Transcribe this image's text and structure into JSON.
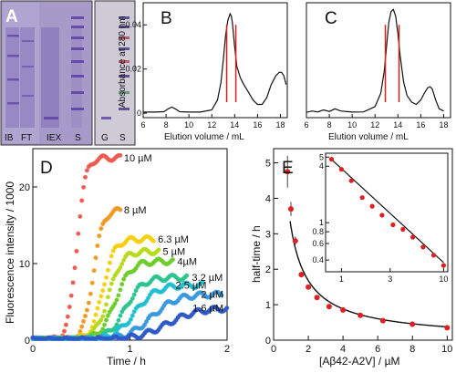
{
  "panel_labels": {
    "a": "A",
    "b": "B",
    "c": "C",
    "d": "D",
    "e": "E"
  },
  "colors": {
    "gel_background": "#a79ac9",
    "gel_band": "#5b3fa4",
    "trace": "#111111",
    "peak_marker": "#d21f1f",
    "fit_points": "#e02020",
    "fit_line": "#111111"
  },
  "chart_data": [
    {
      "id": "A",
      "type": "gel",
      "lane_labels": [
        "IB",
        "FT",
        "IEX",
        "S",
        "G",
        "S"
      ]
    },
    {
      "id": "B",
      "type": "line",
      "xlabel": "Elution volume / mL",
      "ylabel": "Absorbance at 280 nm",
      "xlim": [
        6,
        18.6
      ],
      "ylim": [
        -0.002,
        0.05
      ],
      "xticks": [
        6,
        8,
        10,
        12,
        14,
        16,
        18
      ],
      "yticks": [
        0,
        0.02,
        0.04
      ],
      "ytick_labels": [
        "0",
        "0.02",
        "0.04"
      ],
      "marker_x": [
        13.3,
        14.1
      ],
      "series": [
        {
          "x": [
            6.0,
            7.0,
            7.8,
            8.2,
            8.5,
            8.8,
            9.2,
            10.0,
            11.0,
            12.0,
            12.5,
            12.8,
            13.0,
            13.2,
            13.4,
            13.6,
            13.7,
            13.8,
            14.0,
            14.2,
            14.5,
            14.8,
            15.2,
            15.6,
            16.0,
            16.4,
            16.8,
            17.2,
            17.6,
            17.9,
            18.1,
            18.3,
            18.5
          ],
          "y": [
            0.0005,
            0.0005,
            0.0007,
            0.002,
            0.0028,
            0.002,
            0.0007,
            0.0005,
            0.0005,
            0.0015,
            0.006,
            0.014,
            0.024,
            0.035,
            0.042,
            0.045,
            0.044,
            0.041,
            0.03,
            0.021,
            0.016,
            0.013,
            0.0095,
            0.006,
            0.004,
            0.004,
            0.007,
            0.013,
            0.017,
            0.0185,
            0.0185,
            0.017,
            0.013
          ]
        }
      ]
    },
    {
      "id": "C",
      "type": "line",
      "xlabel": "Elution volume / mL",
      "xlim": [
        6,
        18.6
      ],
      "ylim": [
        -0.002,
        0.05
      ],
      "xticks": [
        6,
        8,
        10,
        12,
        14,
        16,
        18
      ],
      "marker_x": [
        12.9,
        14.1
      ],
      "series": [
        {
          "x": [
            6.0,
            6.5,
            7.0,
            7.5,
            8.0,
            8.5,
            9.0,
            10.0,
            11.0,
            12.0,
            12.5,
            12.8,
            13.0,
            13.2,
            13.4,
            13.6,
            13.8,
            14.0,
            14.2,
            14.5,
            14.8,
            15.2,
            15.6,
            16.0,
            16.3,
            16.6,
            16.8,
            17.0,
            17.3,
            17.6,
            18.0
          ],
          "y": [
            0.0004,
            0.001,
            0.0006,
            0.0015,
            0.0008,
            0.002,
            0.001,
            0.0005,
            0.0006,
            0.003,
            0.009,
            0.019,
            0.03,
            0.041,
            0.046,
            0.047,
            0.044,
            0.036,
            0.026,
            0.014,
            0.008,
            0.005,
            0.004,
            0.006,
            0.009,
            0.0115,
            0.012,
            0.011,
            0.006,
            0.002,
            0.001
          ]
        }
      ]
    },
    {
      "id": "D",
      "type": "scatter",
      "xlabel": "Time / h",
      "ylabel": "Fluorescence intensity / 1000",
      "xlim": [
        0,
        2
      ],
      "ylim": [
        0,
        25
      ],
      "xticks": [
        0,
        1,
        2
      ],
      "yticks": [
        0,
        10,
        20
      ],
      "series": [
        {
          "name": "10 µM",
          "color": "#ee5a50",
          "plateau": 23.8,
          "half_time": 0.45,
          "width": 0.045,
          "end": 0.9
        },
        {
          "name": "8 µM",
          "color": "#f09a23",
          "plateau": 17.0,
          "half_time": 0.62,
          "width": 0.05,
          "end": 0.9
        },
        {
          "name": "6.3 µM",
          "color": "#f5d010",
          "plateau": 13.2,
          "half_time": 0.72,
          "width": 0.06,
          "end": 1.25
        },
        {
          "name": "5 µM",
          "color": "#b7da1c",
          "plateau": 11.6,
          "half_time": 0.78,
          "width": 0.07,
          "end": 1.3
        },
        {
          "name": "4µM",
          "color": "#6dcd2c",
          "plateau": 10.3,
          "half_time": 0.85,
          "width": 0.08,
          "end": 1.45
        },
        {
          "name": "3.2 µM",
          "color": "#2dc58e",
          "plateau": 8.2,
          "half_time": 0.95,
          "width": 0.09,
          "end": 1.6
        },
        {
          "name": "2.5 µM",
          "color": "#22bfd2",
          "plateau": 7.2,
          "half_time": 1.05,
          "width": 0.11,
          "end": 1.75
        },
        {
          "name": "2 µM",
          "color": "#3b99df",
          "plateau": 6.0,
          "half_time": 1.22,
          "width": 0.13,
          "end": 1.95
        },
        {
          "name": "1.6 µM",
          "color": "#2f5ac9",
          "plateau": 4.2,
          "half_time": 1.38,
          "width": 0.16,
          "end": 2.0
        }
      ]
    },
    {
      "id": "E",
      "type": "scatter",
      "xlabel": "[Aβ42-A2V] / µM",
      "ylabel": "half-time / h",
      "xlim": [
        0,
        10.3
      ],
      "ylim": [
        0,
        5.4
      ],
      "xticks": [
        0,
        2,
        4,
        6,
        8,
        10
      ],
      "yticks": [
        0,
        1,
        2,
        3,
        4,
        5
      ],
      "series": [
        {
          "x": [
            0.8,
            1.0,
            1.25,
            1.6,
            2.0,
            2.5,
            3.2,
            4.0,
            5.0,
            6.3,
            8.0,
            10.0
          ],
          "y": [
            4.75,
            3.7,
            2.8,
            1.85,
            1.5,
            1.2,
            0.95,
            0.85,
            0.7,
            0.55,
            0.45,
            0.35
          ],
          "error": [
            0.45,
            0.2,
            0.12,
            0.08,
            0.06,
            0.05,
            0.04,
            0.03,
            0.03,
            0.03,
            0.02,
            0.02
          ]
        }
      ],
      "fit": {
        "type": "power",
        "coefficient": 3.2,
        "exponent": -0.93
      },
      "inset": {
        "type": "scatter",
        "scale": "log-log",
        "xlim": [
          0.7,
          11
        ],
        "ylim": [
          0.3,
          5.5
        ],
        "xticks": [
          1,
          3,
          10
        ],
        "yticks": [
          0.4,
          0.6,
          0.8,
          1,
          4,
          5
        ],
        "ytick_labels": [
          "0.4",
          "0.6",
          "0.8",
          "1",
          "4",
          "5"
        ]
      }
    }
  ]
}
